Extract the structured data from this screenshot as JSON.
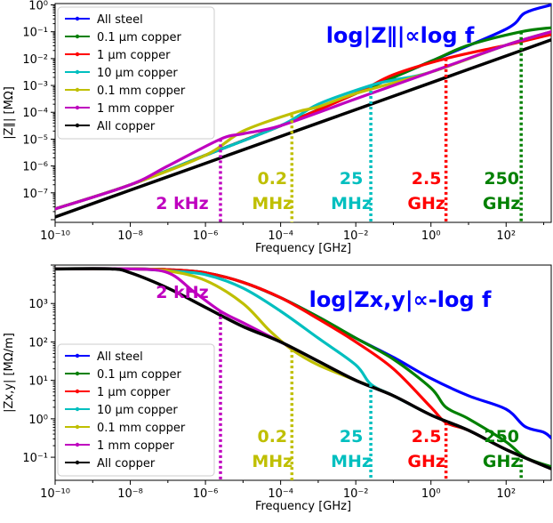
{
  "chart_data": [
    {
      "type": "line",
      "title": "log|Z∥|∝log f",
      "xlabel": "Frequency [GHz]",
      "ylabel": "|Z∥| [MΩ]",
      "xscale": "log",
      "yscale": "log",
      "xlim_log10": [
        -10,
        3.2
      ],
      "ylim_log10": [
        -8.1,
        0.05
      ],
      "xticks": [
        {
          "exp": -10,
          "label": "10⁻¹⁰"
        },
        {
          "exp": -8,
          "label": "10⁻⁸"
        },
        {
          "exp": -6,
          "label": "10⁻⁶"
        },
        {
          "exp": -4,
          "label": "10⁻⁴"
        },
        {
          "exp": -2,
          "label": "10⁻²"
        },
        {
          "exp": 0,
          "label": "10⁰"
        },
        {
          "exp": 2,
          "label": "10²"
        }
      ],
      "yticks": [
        {
          "exp": -7,
          "label": "10⁻⁷"
        },
        {
          "exp": -6,
          "label": "10⁻⁶"
        },
        {
          "exp": -5,
          "label": "10⁻⁵"
        },
        {
          "exp": -4,
          "label": "10⁻⁴"
        },
        {
          "exp": -3,
          "label": "10⁻³"
        },
        {
          "exp": -2,
          "label": "10⁻²"
        },
        {
          "exp": -1,
          "label": "10⁻¹"
        },
        {
          "exp": 0,
          "label": "10⁰"
        }
      ],
      "legend_position": "top-left",
      "series": [
        {
          "name": "All steel",
          "color": "#0000ff",
          "x_log10": [
            -10,
            -8,
            -6,
            -4,
            -2,
            0,
            2,
            2.5,
            3.2
          ],
          "y_log10": [
            -7.6,
            -6.7,
            -5.6,
            -4.5,
            -3.3,
            -2.1,
            -0.9,
            -0.3,
            0.0
          ]
        },
        {
          "name": "0.1 μm copper",
          "color": "#008000",
          "x_log10": [
            -10,
            -8,
            -6,
            -4,
            -2,
            0,
            1,
            2.4,
            3.2
          ],
          "y_log10": [
            -7.6,
            -6.7,
            -5.6,
            -4.5,
            -3.3,
            -2.1,
            -1.5,
            -1.0,
            -0.85
          ]
        },
        {
          "name": "1 μm copper",
          "color": "#ff0000",
          "x_log10": [
            -10,
            -8,
            -6,
            -4,
            -2,
            -1,
            0.4,
            2,
            3.2
          ],
          "y_log10": [
            -7.6,
            -6.7,
            -5.6,
            -4.5,
            -3.3,
            -2.6,
            -2.0,
            -1.5,
            -1.1
          ]
        },
        {
          "name": "10 μm copper",
          "color": "#00bfbf",
          "x_log10": [
            -10,
            -8,
            -6,
            -4,
            -3,
            -1.6,
            -1,
            0,
            2,
            3.2
          ],
          "y_log10": [
            -7.6,
            -6.7,
            -5.6,
            -4.5,
            -3.7,
            -3.0,
            -2.8,
            -2.5,
            -1.5,
            -1.0
          ]
        },
        {
          "name": "0.1 mm copper",
          "color": "#bfbf00",
          "x_log10": [
            -10,
            -8,
            -6,
            -5,
            -3.6,
            -3,
            -2,
            0,
            2,
            3.2
          ],
          "y_log10": [
            -7.6,
            -6.7,
            -5.6,
            -4.7,
            -4.0,
            -3.8,
            -3.3,
            -2.5,
            -1.5,
            -1.0
          ]
        },
        {
          "name": "1 mm copper",
          "color": "#bf00bf",
          "x_log10": [
            -10,
            -8,
            -7,
            -5.6,
            -5,
            -4,
            -2,
            0,
            2,
            3.2
          ],
          "y_log10": [
            -7.6,
            -6.7,
            -6.0,
            -5.0,
            -4.8,
            -4.5,
            -3.5,
            -2.5,
            -1.5,
            -1.0
          ]
        },
        {
          "name": "All copper",
          "color": "#000000",
          "x_log10": [
            -10,
            -8,
            -6,
            -4,
            -2,
            0,
            2,
            3.2
          ],
          "y_log10": [
            -7.9,
            -6.9,
            -5.9,
            -4.9,
            -3.9,
            -2.9,
            -1.9,
            -1.3
          ]
        }
      ],
      "markers": [
        {
          "x_log10": -5.6,
          "y_top_log10": -5.0,
          "color": "#bf00bf",
          "line1": "2 kHz",
          "line2": ""
        },
        {
          "x_log10": -3.7,
          "y_top_log10": -4.1,
          "color": "#bfbf00",
          "line1": "0.2",
          "line2": "MHz"
        },
        {
          "x_log10": -1.6,
          "y_top_log10": -3.0,
          "color": "#00bfbf",
          "line1": "25",
          "line2": "MHz"
        },
        {
          "x_log10": 0.4,
          "y_top_log10": -2.0,
          "color": "#ff0000",
          "line1": "2.5",
          "line2": "GHz"
        },
        {
          "x_log10": 2.4,
          "y_top_log10": -1.0,
          "color": "#008000",
          "line1": "250",
          "line2": "GHz"
        }
      ]
    },
    {
      "type": "line",
      "title": "log|Zx,y|∝-log f",
      "xlabel": "Frequency [GHz]",
      "ylabel": "|Zx,y| [MΩ/m]",
      "xscale": "log",
      "yscale": "log",
      "xlim_log10": [
        -10,
        3.2
      ],
      "ylim_log10": [
        -1.6,
        4.0
      ],
      "xticks": [
        {
          "exp": -10,
          "label": "10⁻¹⁰"
        },
        {
          "exp": -8,
          "label": "10⁻⁸"
        },
        {
          "exp": -6,
          "label": "10⁻⁶"
        },
        {
          "exp": -4,
          "label": "10⁻⁴"
        },
        {
          "exp": -2,
          "label": "10⁻²"
        },
        {
          "exp": 0,
          "label": "10⁰"
        },
        {
          "exp": 2,
          "label": "10²"
        }
      ],
      "yticks": [
        {
          "exp": -1,
          "label": "10⁻¹"
        },
        {
          "exp": 0,
          "label": "10⁰"
        },
        {
          "exp": 1,
          "label": "10¹"
        },
        {
          "exp": 2,
          "label": "10²"
        },
        {
          "exp": 3,
          "label": "10³"
        }
      ],
      "legend_position": "bottom-left",
      "series": [
        {
          "name": "All steel",
          "color": "#0000ff",
          "x_log10": [
            -10,
            -9,
            -8,
            -7,
            -6,
            -5,
            -4,
            -3,
            -2,
            -1,
            0,
            1,
            2,
            2.5,
            3.0,
            3.2
          ],
          "y_log10": [
            3.9,
            3.9,
            3.9,
            3.88,
            3.8,
            3.55,
            3.15,
            2.65,
            2.1,
            1.6,
            1.05,
            0.6,
            0.25,
            -0.2,
            -0.35,
            -0.5
          ]
        },
        {
          "name": "0.1 μm copper",
          "color": "#008000",
          "x_log10": [
            -10,
            -8,
            -7,
            -6,
            -5,
            -4,
            -3,
            -2,
            -1,
            0,
            0.4,
            1,
            2,
            2.5,
            3.2
          ],
          "y_log10": [
            3.9,
            3.9,
            3.88,
            3.8,
            3.55,
            3.15,
            2.65,
            2.1,
            1.55,
            0.8,
            0.3,
            0.0,
            -0.6,
            -1.0,
            -1.25
          ]
        },
        {
          "name": "1 μm copper",
          "color": "#ff0000",
          "x_log10": [
            -10,
            -8,
            -7,
            -6,
            -5,
            -4,
            -3,
            -2,
            -1,
            0,
            0.4,
            1,
            2,
            3.2
          ],
          "y_log10": [
            3.9,
            3.9,
            3.88,
            3.8,
            3.55,
            3.15,
            2.6,
            2.0,
            1.3,
            0.3,
            -0.1,
            -0.3,
            -0.8,
            -1.3
          ]
        },
        {
          "name": "10 μm copper",
          "color": "#00bfbf",
          "x_log10": [
            -10,
            -8,
            -7,
            -6,
            -5,
            -4,
            -3,
            -2,
            -1.6,
            -1,
            0,
            1,
            2,
            3.2
          ],
          "y_log10": [
            3.9,
            3.9,
            3.85,
            3.75,
            3.4,
            2.8,
            2.1,
            1.4,
            0.9,
            0.6,
            0.1,
            -0.3,
            -0.8,
            -1.3
          ]
        },
        {
          "name": "0.1 mm copper",
          "color": "#bfbf00",
          "x_log10": [
            -10,
            -8,
            -7,
            -6,
            -5,
            -4.3,
            -3.7,
            -3,
            -2,
            -1,
            0,
            1,
            2,
            3.2
          ],
          "y_log10": [
            3.9,
            3.9,
            3.85,
            3.6,
            3.0,
            2.3,
            1.8,
            1.4,
            1.0,
            0.6,
            0.1,
            -0.3,
            -0.8,
            -1.3
          ]
        },
        {
          "name": "1 mm copper",
          "color": "#bf00bf",
          "x_log10": [
            -10,
            -8,
            -7,
            -6.3,
            -5.6,
            -5,
            -4,
            -3,
            -2,
            -1,
            0,
            1,
            2,
            3.2
          ],
          "y_log10": [
            3.9,
            3.9,
            3.8,
            3.3,
            2.8,
            2.5,
            2.0,
            1.5,
            1.0,
            0.6,
            0.1,
            -0.3,
            -0.8,
            -1.3
          ]
        },
        {
          "name": "All copper",
          "color": "#000000",
          "x_log10": [
            -10,
            -8.5,
            -8,
            -7,
            -6,
            -5,
            -4,
            -3,
            -2,
            -1,
            0,
            1,
            2,
            3.2
          ],
          "y_log10": [
            3.9,
            3.9,
            3.8,
            3.4,
            2.9,
            2.4,
            2.0,
            1.5,
            1.0,
            0.6,
            0.1,
            -0.3,
            -0.8,
            -1.3
          ]
        }
      ],
      "markers": [
        {
          "x_log10": -5.6,
          "y_top_log10": 2.8,
          "color": "#bf00bf",
          "line1": "2 kHz",
          "line2": ""
        },
        {
          "x_log10": -3.7,
          "y_top_log10": 1.8,
          "color": "#bfbf00",
          "line1": "0.2",
          "line2": "MHz"
        },
        {
          "x_log10": -1.6,
          "y_top_log10": 0.9,
          "color": "#00bfbf",
          "line1": "25",
          "line2": "MHz"
        },
        {
          "x_log10": 0.4,
          "y_top_log10": -0.1,
          "color": "#ff0000",
          "line1": "2.5",
          "line2": "GHz"
        },
        {
          "x_log10": 2.4,
          "y_top_log10": -1.05,
          "color": "#008000",
          "line1": "250",
          "line2": "GHz"
        }
      ]
    }
  ]
}
